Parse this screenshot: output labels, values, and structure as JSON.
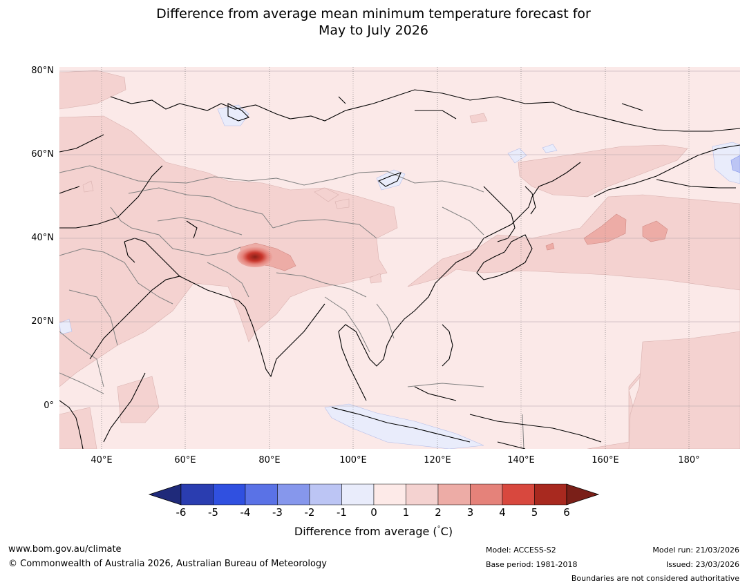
{
  "title": {
    "line1": "Difference from average mean minimum temperature forecast for",
    "line2": "May to July 2026"
  },
  "map": {
    "lat_labels": [
      "80°N",
      "60°N",
      "40°N",
      "20°N",
      "0°"
    ],
    "lon_labels": [
      "40°E",
      "60°E",
      "80°E",
      "100°E",
      "120°E",
      "140°E",
      "160°E",
      "180°"
    ],
    "extent": {
      "lon_min": 30,
      "lon_max": 192,
      "lat_min": -10,
      "lat_max": 80
    },
    "colors": {
      "ocean_base": "#fbe9e8",
      "land_base": "#fbe9e8",
      "coastline": "#000000",
      "boundary": "#808080",
      "gridline": "#b0a0a8"
    }
  },
  "colorbar": {
    "ticks": [
      "-6",
      "-5",
      "-4",
      "-3",
      "-2",
      "-1",
      "0",
      "1",
      "2",
      "3",
      "4",
      "5",
      "6"
    ],
    "colors": [
      "#1f2a7a",
      "#2a3db0",
      "#3050e0",
      "#5a72e6",
      "#8697ec",
      "#bcc5f4",
      "#e9ecfb",
      "#fdeae8",
      "#f4d2d0",
      "#edaca6",
      "#e5827a",
      "#d8483e",
      "#a8291f",
      "#7a1f18"
    ],
    "label": "Difference from average (°C)",
    "label_prefix": "Difference from average (",
    "label_degree": "°",
    "label_suffix": "C)"
  },
  "footer": {
    "website": "www.bom.gov.au/climate",
    "copyright": "© Commonwealth of Australia 2026, Australian Bureau of Meteorology",
    "model": "Model: ACCESS-S2",
    "base_period": "Base period: 1981-2018",
    "model_run": "Model run: 21/03/2026",
    "issued": "Issued: 23/03/2026",
    "boundaries_note": "Boundaries are not considered authoritative"
  }
}
